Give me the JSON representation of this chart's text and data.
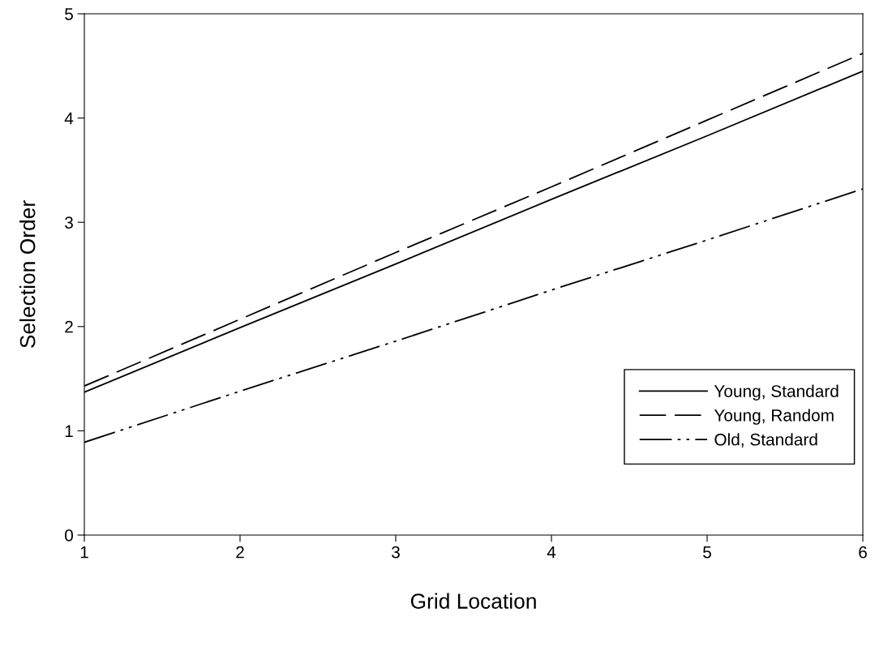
{
  "chart_data": {
    "type": "line",
    "xlabel": "Grid Location",
    "ylabel": "Selection Order",
    "x": [
      1,
      2,
      3,
      4,
      5,
      6
    ],
    "series": [
      {
        "name": "Young, Standard",
        "color": "#000000",
        "line_style": "solid",
        "values": [
          1.37,
          1.99,
          2.6,
          3.22,
          3.83,
          4.45
        ]
      },
      {
        "name": "Young, Random",
        "color": "#000000",
        "line_style": "dashed",
        "values": [
          1.43,
          2.07,
          2.71,
          3.34,
          3.98,
          4.62
        ]
      },
      {
        "name": "Old, Standard",
        "color": "#000000",
        "line_style": "dashdot",
        "values": [
          0.89,
          1.38,
          1.86,
          2.35,
          2.83,
          3.32
        ]
      }
    ],
    "xlim": [
      1,
      6
    ],
    "xticks": [
      1,
      2,
      3,
      4,
      5,
      6
    ],
    "ylim": [
      0,
      5
    ],
    "yticks": [
      0,
      1,
      2,
      3,
      4,
      5
    ],
    "grid": false,
    "legend": "bottom right",
    "marker": "none"
  }
}
